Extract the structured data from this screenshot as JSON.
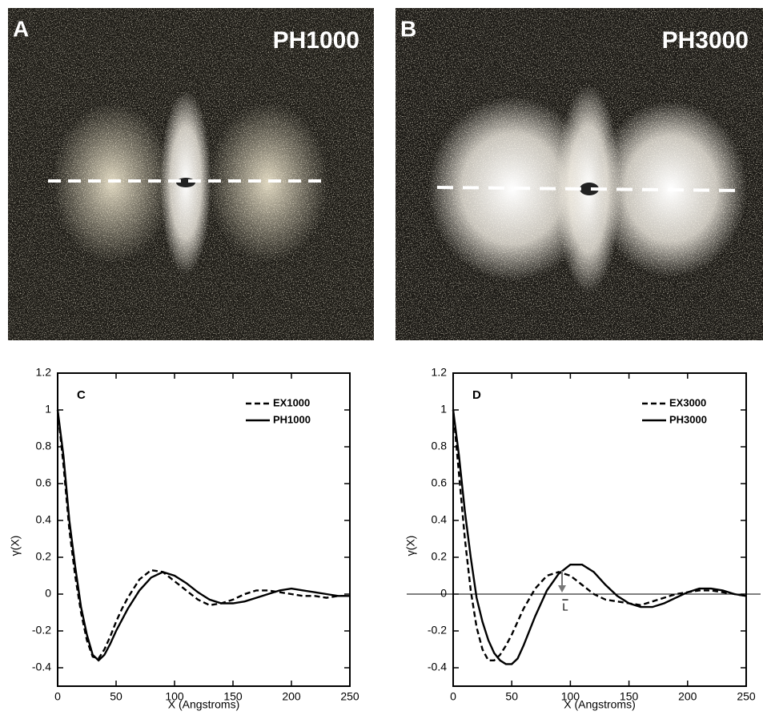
{
  "panels": [
    {
      "label": "A",
      "title": "PH1000"
    },
    {
      "label": "B",
      "title": "PH3000"
    }
  ],
  "chart_data": [
    {
      "type": "line",
      "panel_label": "C",
      "xlabel": "X (Angstroms)",
      "ylabel": "γ(X)",
      "x": [
        0,
        5,
        10,
        15,
        20,
        25,
        30,
        35,
        40,
        45,
        50,
        55,
        60,
        70,
        80,
        90,
        100,
        110,
        120,
        130,
        140,
        150,
        160,
        170,
        180,
        190,
        200,
        210,
        220,
        230,
        240,
        250
      ],
      "xlim": [
        0,
        250
      ],
      "xticks": [
        0,
        50,
        100,
        150,
        200,
        250
      ],
      "ylim": [
        -0.5,
        1.2
      ],
      "yticks": [
        -0.4,
        -0.2,
        0,
        0.2,
        0.4,
        0.6,
        0.8,
        1,
        1.2
      ],
      "legend": "upper right",
      "series": [
        {
          "name": "EX1000",
          "color": "#000000",
          "dash": true,
          "values": [
            1,
            0.7,
            0.35,
            0.1,
            -0.1,
            -0.25,
            -0.34,
            -0.35,
            -0.3,
            -0.23,
            -0.15,
            -0.08,
            -0.02,
            0.08,
            0.13,
            0.12,
            0.07,
            0.02,
            -0.03,
            -0.06,
            -0.05,
            -0.03,
            0,
            0.02,
            0.02,
            0.01,
            0,
            -0.01,
            -0.01,
            -0.02,
            -0.01,
            -0.01
          ]
        },
        {
          "name": "PH1000",
          "color": "#000000",
          "dash": false,
          "values": [
            1,
            0.75,
            0.4,
            0.15,
            -0.07,
            -0.22,
            -0.33,
            -0.36,
            -0.33,
            -0.27,
            -0.2,
            -0.14,
            -0.08,
            0.02,
            0.09,
            0.12,
            0.1,
            0.06,
            0.01,
            -0.03,
            -0.05,
            -0.05,
            -0.04,
            -0.02,
            0,
            0.02,
            0.03,
            0.02,
            0.01,
            0,
            -0.01,
            -0.01
          ]
        }
      ]
    },
    {
      "type": "line",
      "panel_label": "D",
      "xlabel": "X (Angstroms)",
      "ylabel": "γ(X)",
      "x": [
        0,
        5,
        10,
        15,
        20,
        25,
        30,
        35,
        40,
        45,
        50,
        55,
        60,
        70,
        80,
        90,
        100,
        110,
        120,
        130,
        140,
        150,
        160,
        170,
        180,
        190,
        200,
        210,
        220,
        230,
        240,
        250
      ],
      "xlim": [
        0,
        250
      ],
      "xticks": [
        0,
        50,
        100,
        150,
        200,
        250
      ],
      "ylim": [
        -0.5,
        1.2
      ],
      "yticks": [
        -0.4,
        -0.2,
        0,
        0.2,
        0.4,
        0.6,
        0.8,
        1,
        1.2
      ],
      "legend": "upper right",
      "zero_line": true,
      "annotation": "L",
      "series": [
        {
          "name": "EX3000",
          "color": "#000000",
          "dash": true,
          "values": [
            1,
            0.65,
            0.3,
            0.02,
            -0.18,
            -0.3,
            -0.36,
            -0.36,
            -0.33,
            -0.28,
            -0.22,
            -0.15,
            -0.08,
            0.03,
            0.1,
            0.12,
            0.1,
            0.05,
            0,
            -0.03,
            -0.04,
            -0.05,
            -0.06,
            -0.04,
            -0.02,
            0,
            0.01,
            0.02,
            0.02,
            0.01,
            0,
            -0.01
          ]
        },
        {
          "name": "PH3000",
          "color": "#000000",
          "dash": false,
          "values": [
            1,
            0.75,
            0.45,
            0.2,
            -0.02,
            -0.15,
            -0.25,
            -0.32,
            -0.36,
            -0.38,
            -0.38,
            -0.35,
            -0.28,
            -0.12,
            0.02,
            0.11,
            0.16,
            0.16,
            0.12,
            0.05,
            -0.01,
            -0.05,
            -0.07,
            -0.07,
            -0.05,
            -0.02,
            0.01,
            0.03,
            0.03,
            0.02,
            0,
            -0.01
          ]
        }
      ]
    }
  ]
}
